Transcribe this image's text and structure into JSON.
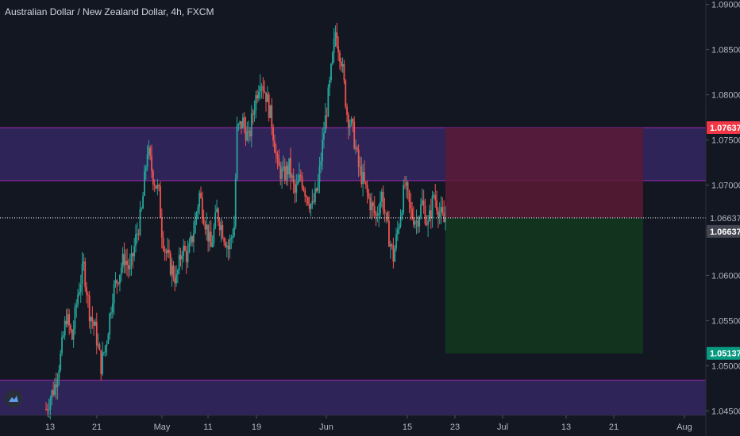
{
  "header": {
    "title": "Australian Dollar / New Zealand Dollar, 4h, FXCM"
  },
  "colors": {
    "background": "#131722",
    "up_candle": "#26a69a",
    "down_candle": "#ef5350",
    "zone_fill": "#3a2a6a",
    "zone_line": "#9c27b0",
    "stop_zone": "#5a1a35",
    "target_zone": "#12361f",
    "price_line": "#ffffff",
    "stop_tag": "#f23645",
    "target_tag": "#089981",
    "current_tag": "#434651"
  },
  "icons": {
    "logo": "tradingview-logo-icon"
  },
  "chart_data": {
    "type": "candlestick",
    "title": "Australian Dollar / New Zealand Dollar, 4h, FXCM",
    "ylim": [
      1.0445,
      1.0905
    ],
    "y_ticks": [
      "1.09000",
      "1.08500",
      "1.08000",
      "1.07500",
      "1.07000",
      "1.06500",
      "1.06000",
      "1.05500",
      "1.05000",
      "1.04500"
    ],
    "y_tick_values": [
      1.09,
      1.085,
      1.08,
      1.075,
      1.07,
      1.065,
      1.06,
      1.055,
      1.05,
      1.045
    ],
    "x_ticks": [
      "13",
      "21",
      "May",
      "11",
      "19",
      "Jun",
      "15",
      "23",
      "Jul",
      "13",
      "21",
      "Aug"
    ],
    "close_path": [
      [
        0,
        1.0452
      ],
      [
        3,
        1.0478
      ],
      [
        5,
        1.051
      ],
      [
        7,
        1.0555
      ],
      [
        9,
        1.053
      ],
      [
        11,
        1.058
      ],
      [
        13,
        1.061
      ],
      [
        15,
        1.056
      ],
      [
        17,
        1.054
      ],
      [
        19,
        1.05
      ],
      [
        21,
        1.053
      ],
      [
        23,
        1.058
      ],
      [
        25,
        1.06
      ],
      [
        27,
        1.062
      ],
      [
        29,
        1.0605
      ],
      [
        31,
        1.064
      ],
      [
        33,
        1.067
      ],
      [
        35,
        1.074
      ],
      [
        37,
        1.071
      ],
      [
        39,
        1.069
      ],
      [
        40,
        1.065
      ],
      [
        41,
        1.063
      ],
      [
        43,
        1.061
      ],
      [
        45,
        1.0595
      ],
      [
        47,
        1.063
      ],
      [
        49,
        1.062
      ],
      [
        51,
        1.065
      ],
      [
        53,
        1.069
      ],
      [
        55,
        1.066
      ],
      [
        57,
        1.063
      ],
      [
        59,
        1.067
      ],
      [
        61,
        1.065
      ],
      [
        63,
        1.063
      ],
      [
        65,
        1.0655
      ],
      [
        66,
        1.076
      ],
      [
        68,
        1.077
      ],
      [
        70,
        1.075
      ],
      [
        72,
        1.079
      ],
      [
        74,
        1.082
      ],
      [
        76,
        1.08
      ],
      [
        78,
        1.077
      ],
      [
        80,
        1.072
      ],
      [
        82,
        1.071
      ],
      [
        84,
        1.072
      ],
      [
        86,
        1.069
      ],
      [
        88,
        1.071
      ],
      [
        90,
        1.069
      ],
      [
        92,
        1.0675
      ],
      [
        94,
        1.07
      ],
      [
        96,
        1.076
      ],
      [
        98,
        1.081
      ],
      [
        100,
        1.087
      ],
      [
        102,
        1.084
      ],
      [
        104,
        1.078
      ],
      [
        106,
        1.076
      ],
      [
        108,
        1.072
      ],
      [
        110,
        1.07
      ],
      [
        112,
        1.068
      ],
      [
        114,
        1.0665
      ],
      [
        116,
        1.069
      ],
      [
        118,
        1.065
      ],
      [
        120,
        1.062
      ],
      [
        122,
        1.066
      ],
      [
        124,
        1.07
      ],
      [
        126,
        1.067
      ],
      [
        128,
        1.066
      ],
      [
        130,
        1.068
      ],
      [
        132,
        1.0655
      ],
      [
        134,
        1.069
      ],
      [
        136,
        1.067
      ],
      [
        138,
        1.0655
      ]
    ],
    "zones": [
      {
        "top": 1.07637,
        "bottom": 1.0705
      },
      {
        "top": 1.0484,
        "bottom": 1.0445
      }
    ],
    "position": {
      "type": "short",
      "entry": 1.06637,
      "stop": 1.07637,
      "target": 1.05137,
      "entry_label": "1.06637",
      "stop_label": "1.07637",
      "target_label": "1.05137",
      "current_label": "1.06637"
    }
  }
}
